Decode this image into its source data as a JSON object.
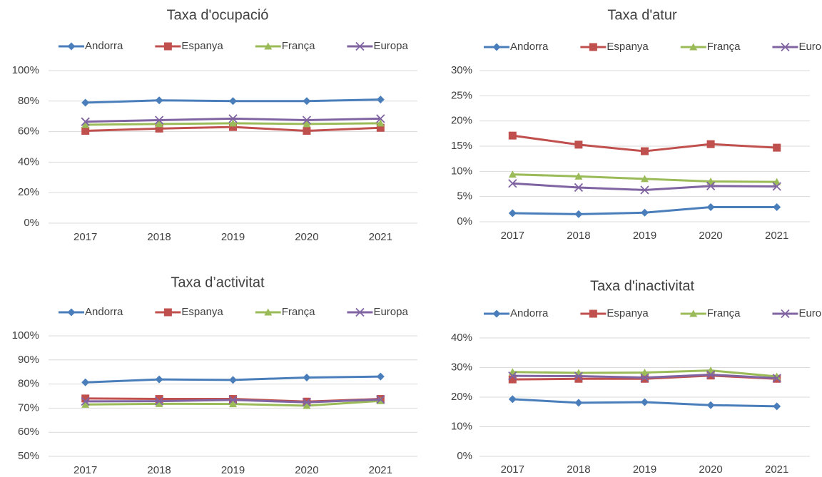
{
  "chart_data": [
    {
      "type": "line",
      "title": "Taxa d'ocupació",
      "categories": [
        "2017",
        "2018",
        "2019",
        "2020",
        "2021"
      ],
      "ylim": [
        0,
        100
      ],
      "yticks": [
        {
          "value": 0,
          "label": "0%"
        },
        {
          "value": 20,
          "label": "20%"
        },
        {
          "value": 40,
          "label": "40%"
        },
        {
          "value": 60,
          "label": "60%"
        },
        {
          "value": 80,
          "label": "80%"
        },
        {
          "value": 100,
          "label": "100%"
        }
      ],
      "grid": true,
      "series": [
        {
          "name": "Andorra",
          "color": "#4a7ebb",
          "marker": "diamond",
          "values": [
            79,
            80.5,
            80,
            80,
            81
          ]
        },
        {
          "name": "Espanya",
          "color": "#c0504d",
          "marker": "square",
          "values": [
            60.5,
            62,
            63,
            60.5,
            62.5
          ]
        },
        {
          "name": "França",
          "color": "#9bbb59",
          "marker": "triangle",
          "values": [
            64.5,
            65,
            65.5,
            65,
            65.5
          ]
        },
        {
          "name": "Europa",
          "color": "#8064a2",
          "marker": "x",
          "values": [
            66.5,
            67.5,
            68.5,
            67.5,
            68.5
          ]
        }
      ]
    },
    {
      "type": "line",
      "title": "Taxa d'atur",
      "categories": [
        "2017",
        "2018",
        "2019",
        "2020",
        "2021"
      ],
      "ylim": [
        0,
        30
      ],
      "yticks": [
        {
          "value": 0,
          "label": "0%"
        },
        {
          "value": 5,
          "label": "5%"
        },
        {
          "value": 10,
          "label": "10%"
        },
        {
          "value": 15,
          "label": "15%"
        },
        {
          "value": 20,
          "label": "20%"
        },
        {
          "value": 25,
          "label": "25%"
        },
        {
          "value": 30,
          "label": "30%"
        }
      ],
      "grid": true,
      "series": [
        {
          "name": "Andorra",
          "color": "#4a7ebb",
          "marker": "diamond",
          "values": [
            1.7,
            1.5,
            1.8,
            2.9,
            2.9
          ]
        },
        {
          "name": "Espanya",
          "color": "#c0504d",
          "marker": "square",
          "values": [
            17.1,
            15.3,
            14.0,
            15.4,
            14.7
          ]
        },
        {
          "name": "França",
          "color": "#9bbb59",
          "marker": "triangle",
          "values": [
            9.4,
            9.0,
            8.5,
            8.0,
            7.9
          ]
        },
        {
          "name": "Europa",
          "color": "#8064a2",
          "marker": "x",
          "values": [
            7.6,
            6.8,
            6.3,
            7.1,
            7.0
          ]
        }
      ]
    },
    {
      "type": "line",
      "title": "Taxa d’activitat",
      "categories": [
        "2017",
        "2018",
        "2019",
        "2020",
        "2021"
      ],
      "ylim": [
        50,
        100
      ],
      "yticks": [
        {
          "value": 50,
          "label": "50%"
        },
        {
          "value": 60,
          "label": "60%"
        },
        {
          "value": 70,
          "label": "70%"
        },
        {
          "value": 80,
          "label": "80%"
        },
        {
          "value": 90,
          "label": "90%"
        },
        {
          "value": 100,
          "label": "100%"
        }
      ],
      "grid": true,
      "series": [
        {
          "name": "Andorra",
          "color": "#4a7ebb",
          "marker": "diamond",
          "values": [
            80.7,
            81.9,
            81.7,
            82.7,
            83.1
          ]
        },
        {
          "name": "Espanya",
          "color": "#c0504d",
          "marker": "square",
          "values": [
            74,
            73.8,
            73.8,
            72.7,
            73.8
          ]
        },
        {
          "name": "França",
          "color": "#9bbb59",
          "marker": "triangle",
          "values": [
            71.5,
            71.8,
            71.7,
            71,
            73
          ]
        },
        {
          "name": "Europa",
          "color": "#8064a2",
          "marker": "x",
          "values": [
            72.8,
            72.9,
            73.4,
            72.4,
            73.6
          ]
        }
      ]
    },
    {
      "type": "line",
      "title": "Taxa d'inactivitat",
      "categories": [
        "2017",
        "2018",
        "2019",
        "2020",
        "2021"
      ],
      "ylim": [
        0,
        40
      ],
      "yticks": [
        {
          "value": 0,
          "label": "0%"
        },
        {
          "value": 10,
          "label": "10%"
        },
        {
          "value": 20,
          "label": "20%"
        },
        {
          "value": 30,
          "label": "30%"
        },
        {
          "value": 40,
          "label": "40%"
        }
      ],
      "grid": true,
      "series": [
        {
          "name": "Andorra",
          "color": "#4a7ebb",
          "marker": "diamond",
          "values": [
            19.3,
            18.1,
            18.3,
            17.3,
            16.9
          ]
        },
        {
          "name": "Espanya",
          "color": "#c0504d",
          "marker": "square",
          "values": [
            26,
            26.2,
            26.2,
            27.3,
            26.2
          ]
        },
        {
          "name": "França",
          "color": "#9bbb59",
          "marker": "triangle",
          "values": [
            28.5,
            28.2,
            28.3,
            29,
            27
          ]
        },
        {
          "name": "Europa",
          "color": "#8064a2",
          "marker": "x",
          "values": [
            27.2,
            27.1,
            26.6,
            27.6,
            26.4
          ]
        }
      ]
    }
  ]
}
